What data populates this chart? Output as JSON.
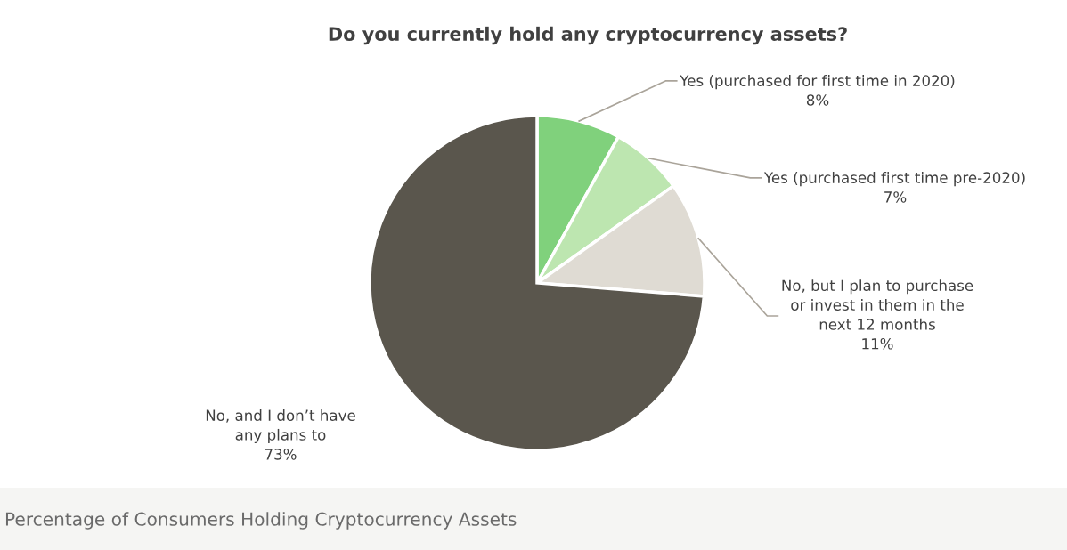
{
  "chart_data": {
    "type": "pie",
    "title": "Do you currently hold any cryptocurrency assets?",
    "categories": [
      "Yes (purchased for first time in 2020)",
      "Yes (purchased first time pre-2020)",
      "No, but I plan to purchase\nor invest in them in the\nnext 12 months",
      "No, and I don’t have\nany plans to"
    ],
    "values": [
      8,
      7,
      11,
      73
    ],
    "colors": [
      "#80d17c",
      "#bde6b0",
      "#dfdbd3",
      "#5a564d"
    ],
    "value_labels": [
      "8%",
      "7%",
      "11%",
      "73%"
    ],
    "annotations": [
      "Percentage of Consumers Holding Cryptocurrency Assets"
    ]
  }
}
